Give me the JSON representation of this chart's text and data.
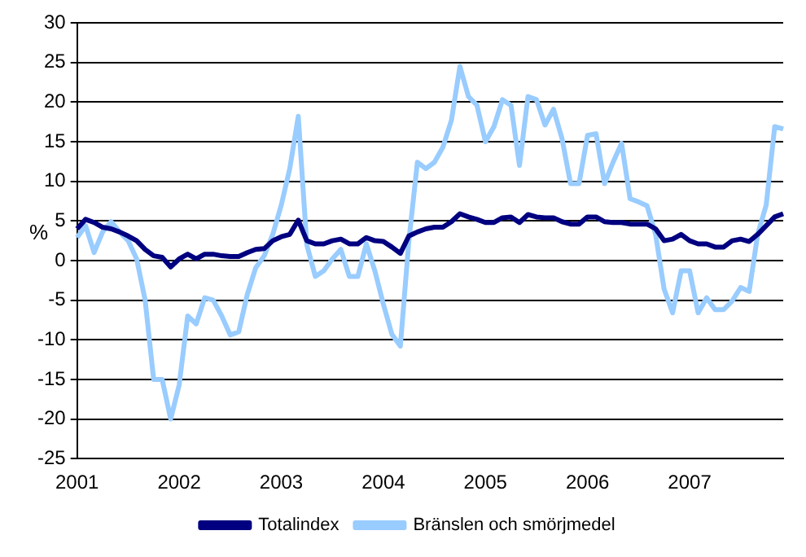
{
  "chart_data": {
    "type": "line",
    "ylabel": "%",
    "categories": [
      "2001",
      null,
      null,
      null,
      null,
      null,
      null,
      null,
      null,
      null,
      null,
      null,
      "2002",
      null,
      null,
      null,
      null,
      null,
      null,
      null,
      null,
      null,
      null,
      null,
      "2003",
      null,
      null,
      null,
      null,
      null,
      null,
      null,
      null,
      null,
      null,
      null,
      "2004",
      null,
      null,
      null,
      null,
      null,
      null,
      null,
      null,
      null,
      null,
      null,
      "2005",
      null,
      null,
      null,
      null,
      null,
      null,
      null,
      null,
      null,
      null,
      null,
      "2006",
      null,
      null,
      null,
      null,
      null,
      null,
      null,
      null,
      null,
      null,
      null,
      "2007",
      null,
      null,
      null,
      null,
      null,
      null,
      null,
      null,
      null,
      null,
      null
    ],
    "series": [
      {
        "name": "Totalindex",
        "color": "#000080",
        "values": [
          4,
          5.2,
          4.8,
          4.2,
          4,
          3.6,
          3.1,
          2.5,
          1.4,
          0.6,
          0.4,
          -0.8,
          0.2,
          0.8,
          0.2,
          0.8,
          0.8,
          0.6,
          0.5,
          0.5,
          1,
          1.4,
          1.5,
          2.5,
          3,
          3.3,
          5.1,
          2.5,
          2.1,
          2.1,
          2.5,
          2.7,
          2.1,
          2.1,
          2.9,
          2.5,
          2.4,
          1.7,
          0.9,
          3.1,
          3.6,
          4,
          4.2,
          4.2,
          4.9,
          5.9,
          5.5,
          5.2,
          4.8,
          4.8,
          5.4,
          5.5,
          4.8,
          5.8,
          5.5,
          5.4,
          5.4,
          4.9,
          4.6,
          4.6,
          5.5,
          5.5,
          4.9,
          4.8,
          4.8,
          4.6,
          4.6,
          4.6,
          4,
          2.5,
          2.7,
          3.3,
          2.5,
          2.1,
          2.1,
          1.7,
          1.7,
          2.5,
          2.7,
          2.4,
          3.3,
          4.4,
          5.5,
          5.9
        ]
      },
      {
        "name": "Bränslen och smörjmedel",
        "color": "#99ccff",
        "values": [
          2.9,
          4.4,
          1,
          3.6,
          4.9,
          3.6,
          2.5,
          0.2,
          -5,
          -15,
          -15,
          -20,
          -15.7,
          -7,
          -8,
          -4.7,
          -5,
          -7,
          -9.4,
          -9,
          -4.3,
          -0.9,
          0.6,
          3.3,
          7,
          11.6,
          18.2,
          2,
          -2,
          -1.3,
          0.2,
          1.4,
          -2,
          -2,
          2.1,
          -1.3,
          -5.5,
          -9.3,
          -10.8,
          2.5,
          12.4,
          11.6,
          12.4,
          14.3,
          17.7,
          24.5,
          20.7,
          19.6,
          15,
          16.9,
          20.3,
          19.6,
          12,
          20.7,
          20.3,
          17.1,
          19.1,
          15.4,
          9.7,
          9.7,
          15.8,
          16,
          9.7,
          12.4,
          14.8,
          7.8,
          7.4,
          6.9,
          3.3,
          -3.6,
          -6.6,
          -1.3,
          -1.3,
          -6.6,
          -4.7,
          -6.2,
          -6.2,
          -5.1,
          -3.4,
          -3.9,
          3.3,
          7,
          16.9,
          16.6
        ]
      }
    ],
    "ylim": [
      -25,
      30
    ],
    "yticks": [
      -25,
      -20,
      -15,
      -10,
      -5,
      0,
      5,
      10,
      15,
      20,
      25,
      30
    ],
    "grid": "y",
    "legend": "bottom",
    "marker": "none",
    "line_style": "solid"
  }
}
